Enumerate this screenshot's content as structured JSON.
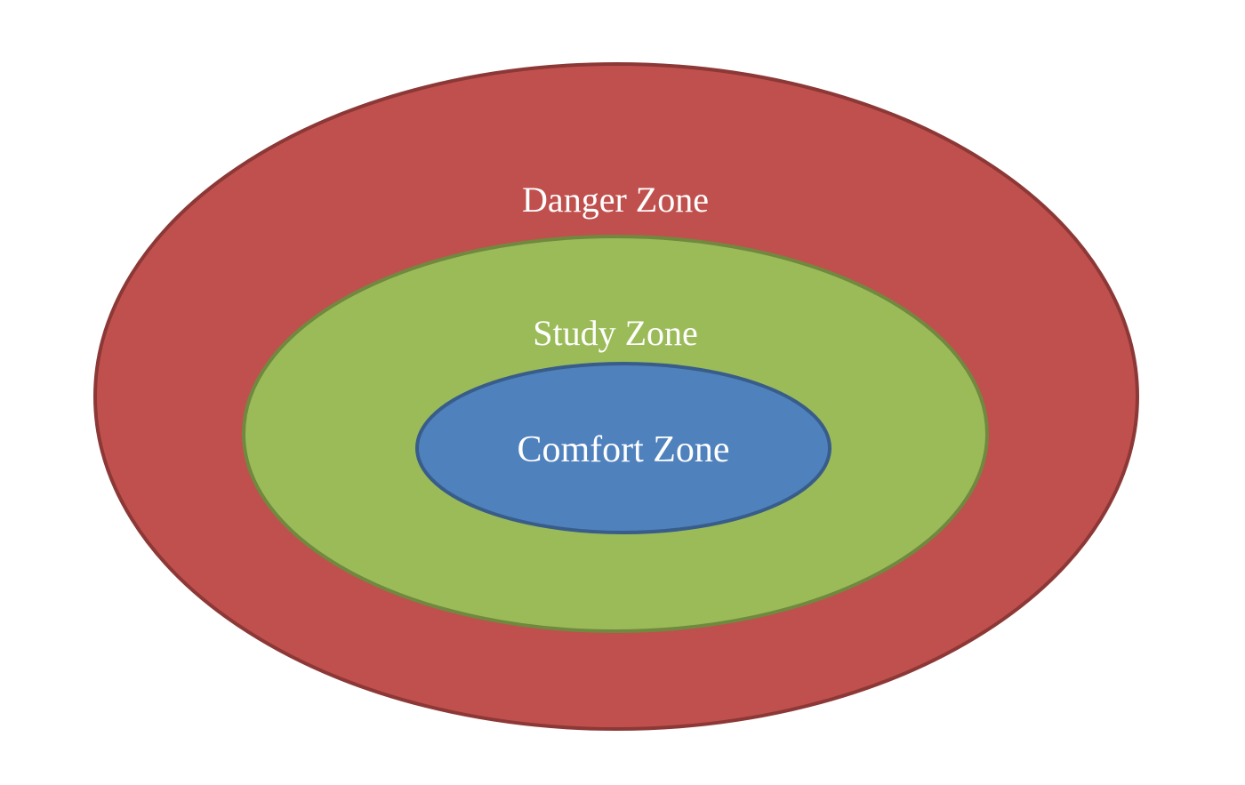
{
  "zones": [
    {
      "label": "Danger Zone",
      "fill": "#C0504D",
      "stroke": "#8C3836"
    },
    {
      "label": "Study Zone",
      "fill": "#9BBB59",
      "stroke": "#71893F"
    },
    {
      "label": "Comfort Zone",
      "fill": "#4F81BD",
      "stroke": "#385D8A"
    }
  ],
  "label_color": "#FFFFFF"
}
